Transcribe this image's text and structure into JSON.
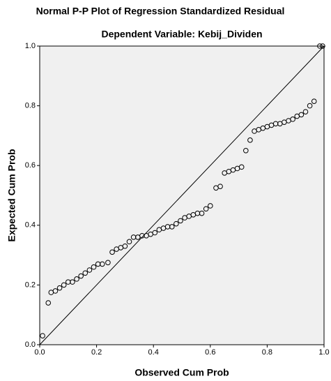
{
  "chart_data": {
    "type": "scatter",
    "title": "Normal P-P Plot of Regression Standardized Residual",
    "subtitle": "Dependent Variable: Kebij_Dividen",
    "x_label": "Observed Cum Prob",
    "y_label": "Expected Cum Prob",
    "color": "#000000",
    "x": [
      0.01,
      0.03,
      0.04,
      0.055,
      0.07,
      0.085,
      0.1,
      0.115,
      0.13,
      0.145,
      0.16,
      0.175,
      0.19,
      0.205,
      0.22,
      0.24,
      0.255,
      0.27,
      0.285,
      0.3,
      0.315,
      0.33,
      0.345,
      0.36,
      0.375,
      0.39,
      0.405,
      0.42,
      0.435,
      0.45,
      0.465,
      0.48,
      0.495,
      0.51,
      0.525,
      0.54,
      0.555,
      0.57,
      0.585,
      0.6,
      0.62,
      0.635,
      0.65,
      0.665,
      0.68,
      0.695,
      0.71,
      0.725,
      0.74,
      0.755,
      0.77,
      0.785,
      0.8,
      0.815,
      0.83,
      0.845,
      0.86,
      0.875,
      0.89,
      0.905,
      0.92,
      0.935,
      0.95,
      0.965,
      0.985,
      0.995
    ],
    "values": [
      0.03,
      0.14,
      0.175,
      0.18,
      0.19,
      0.2,
      0.21,
      0.21,
      0.22,
      0.23,
      0.24,
      0.25,
      0.26,
      0.27,
      0.27,
      0.275,
      0.31,
      0.32,
      0.325,
      0.33,
      0.345,
      0.36,
      0.36,
      0.365,
      0.365,
      0.37,
      0.375,
      0.385,
      0.39,
      0.395,
      0.395,
      0.405,
      0.415,
      0.425,
      0.43,
      0.435,
      0.44,
      0.44,
      0.455,
      0.465,
      0.525,
      0.53,
      0.575,
      0.58,
      0.585,
      0.59,
      0.595,
      0.65,
      0.685,
      0.715,
      0.72,
      0.725,
      0.73,
      0.735,
      0.74,
      0.74,
      0.745,
      0.75,
      0.755,
      0.765,
      0.77,
      0.78,
      0.8,
      0.815,
      1.0,
      1.0
    ],
    "xlim": [
      0,
      1
    ],
    "ylim": [
      0,
      1
    ],
    "xticks": [
      {
        "value": 0,
        "label": "0.0"
      },
      0.2,
      0.4,
      0.6,
      0.8,
      {
        "value": 1,
        "label": "1.0"
      }
    ],
    "yticks": [
      {
        "value": 0,
        "label": "0.0"
      },
      0.2,
      0.4,
      0.6,
      0.8,
      {
        "value": 1,
        "label": "1.0"
      }
    ]
  }
}
